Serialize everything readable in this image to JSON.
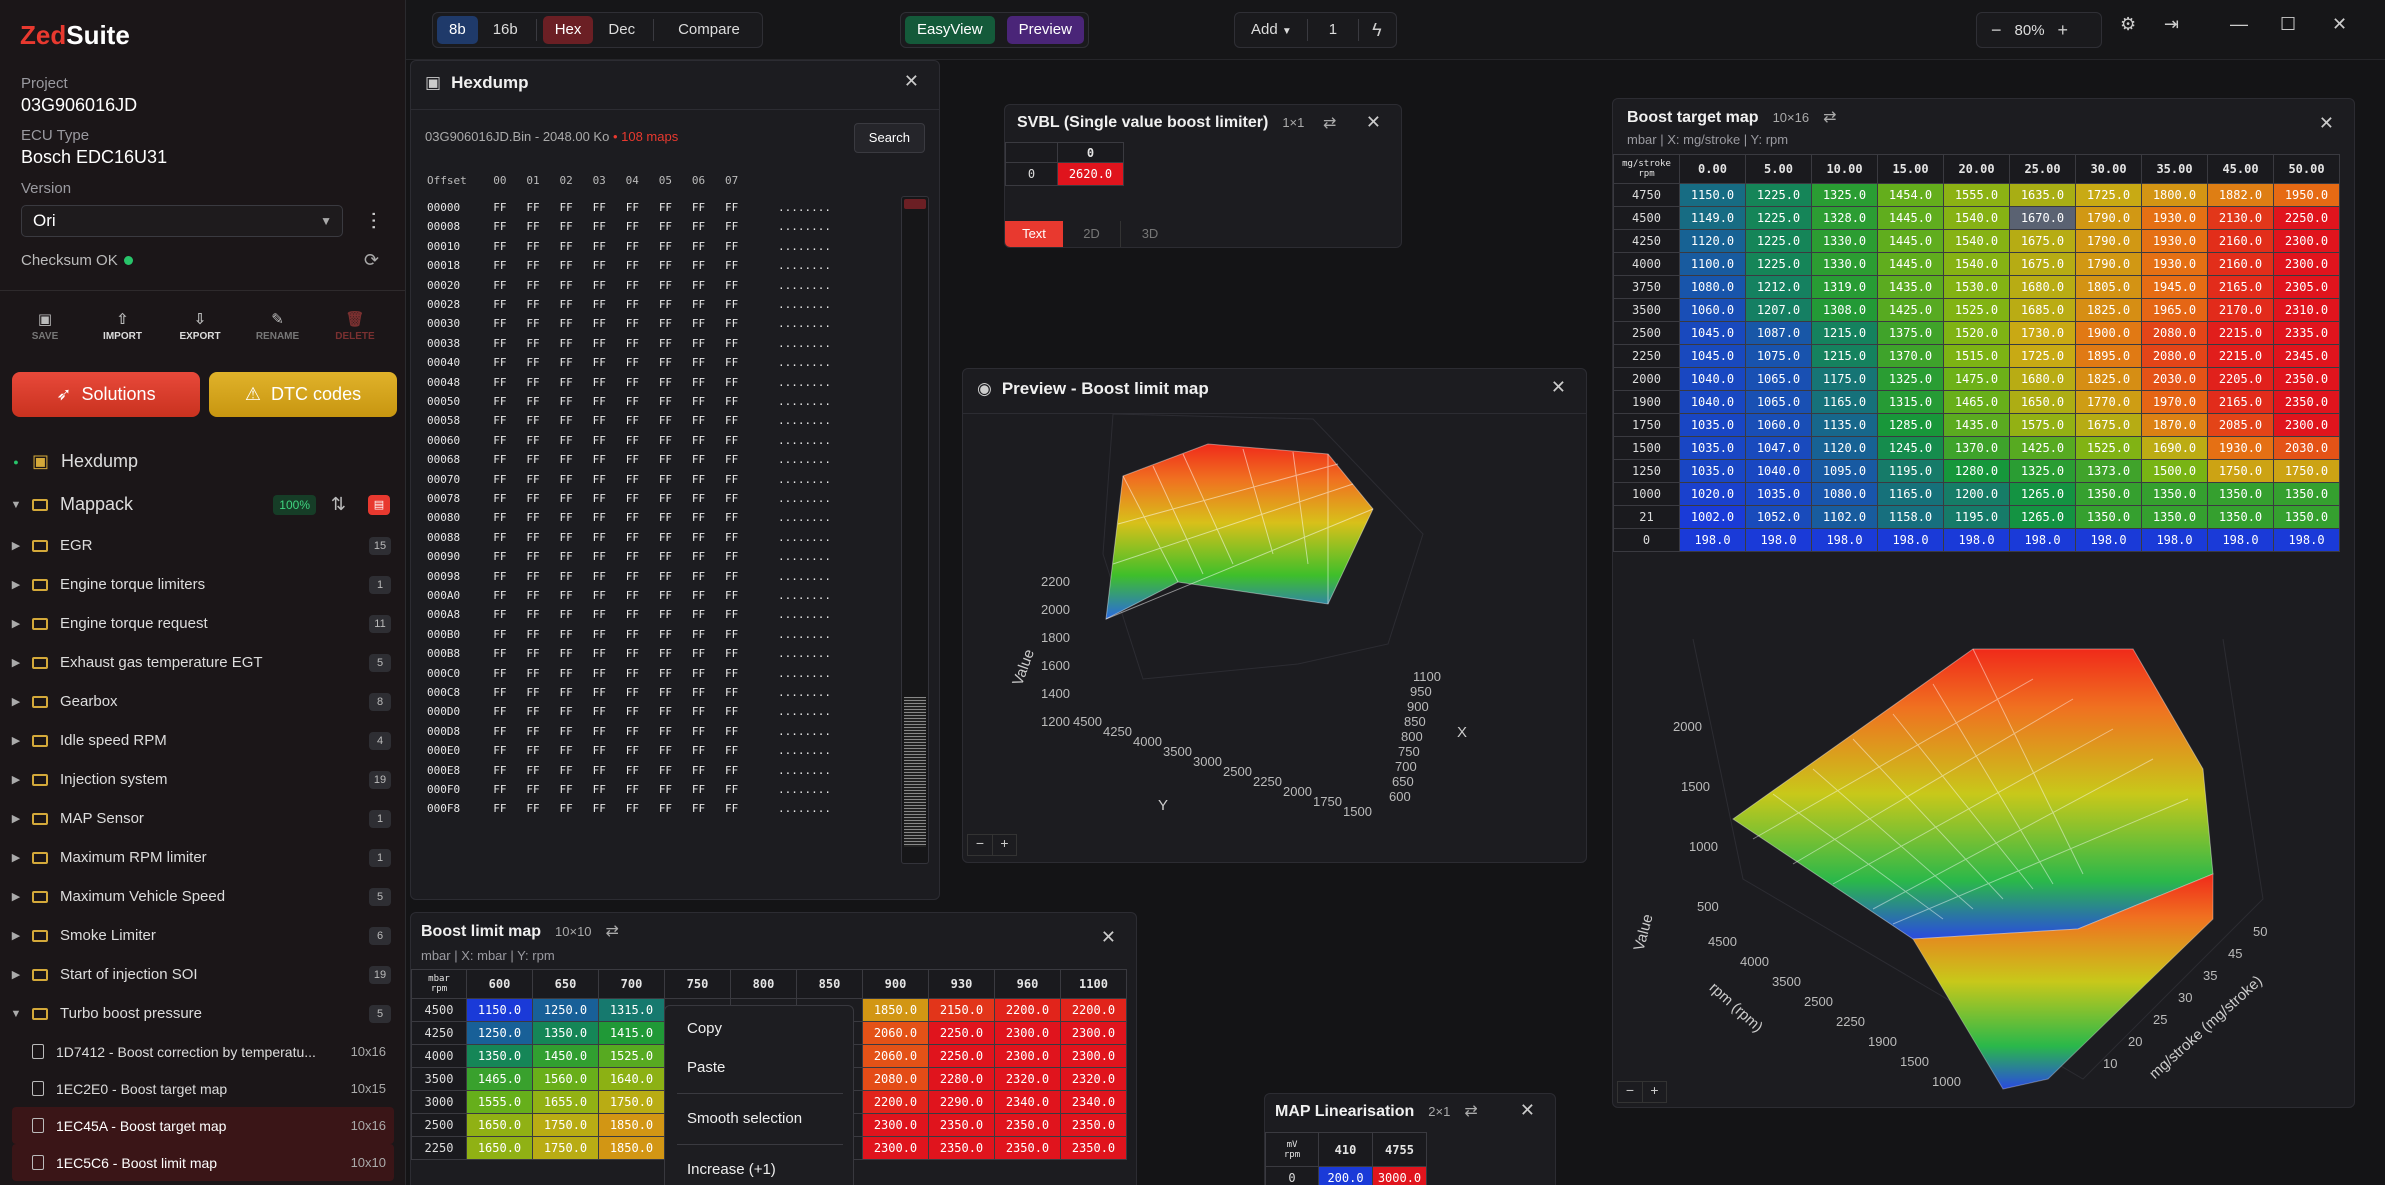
{
  "app": {
    "logo_a": "Zed",
    "logo_b": "Suite"
  },
  "sidebar": {
    "project_label": "Project",
    "project_value": "03G906016JD",
    "ecu_label": "ECU Type",
    "ecu_value": "Bosch EDC16U31",
    "version_label": "Version",
    "version_value": "Ori",
    "checksum": "Checksum OK",
    "actions": {
      "save": "SAVE",
      "import": "IMPORT",
      "export": "EXPORT",
      "rename": "RENAME",
      "delete": "DELETE"
    },
    "solutions": "Solutions",
    "dtc": "DTC codes",
    "hexdump": "Hexdump",
    "mappack": "Mappack",
    "mappack_pct": "100%",
    "folders": [
      {
        "name": "EGR",
        "count": "15"
      },
      {
        "name": "Engine torque limiters",
        "count": "1"
      },
      {
        "name": "Engine torque request",
        "count": "11"
      },
      {
        "name": "Exhaust gas temperature EGT",
        "count": "5"
      },
      {
        "name": "Gearbox",
        "count": "8"
      },
      {
        "name": "Idle speed RPM",
        "count": "4"
      },
      {
        "name": "Injection system",
        "count": "19"
      },
      {
        "name": "MAP Sensor",
        "count": "1"
      },
      {
        "name": "Maximum RPM limiter",
        "count": "1"
      },
      {
        "name": "Maximum Vehicle Speed",
        "count": "5"
      },
      {
        "name": "Smoke Limiter",
        "count": "6"
      },
      {
        "name": "Start of injection SOI",
        "count": "19"
      },
      {
        "name": "Turbo boost pressure",
        "count": "5"
      }
    ],
    "maps": [
      {
        "name": "1D7412 - Boost correction by temperatu...",
        "dim": "10x16"
      },
      {
        "name": "1EC2E0 - Boost target map",
        "dim": "10x15"
      },
      {
        "name": "1EC45A - Boost target map",
        "dim": "10x16"
      },
      {
        "name": "1EC5C6 - Boost limit map",
        "dim": "10x10"
      }
    ]
  },
  "topbar": {
    "b8": "8b",
    "b16": "16b",
    "hex": "Hex",
    "dec": "Dec",
    "compare": "Compare",
    "easyview": "EasyView",
    "preview": "Preview",
    "add": "Add",
    "qty": "1",
    "zoom": "80%"
  },
  "hexdump": {
    "title": "Hexdump",
    "file": "03G906016JD.Bin",
    "size": "- 2048.00 Ko",
    "maps": "• 108 maps",
    "search": "Search",
    "header": "Offset    00   01   02   03   04   05   06   07",
    "offsets": [
      "00000",
      "00008",
      "00010",
      "00018",
      "00020",
      "00028",
      "00030",
      "00038",
      "00040",
      "00048",
      "00050",
      "00058",
      "00060",
      "00068",
      "00070",
      "00078",
      "00080",
      "00088",
      "00090",
      "00098",
      "000A0",
      "000A8",
      "000B0",
      "000B8",
      "000C0",
      "000C8",
      "000D0",
      "000D8",
      "000E0",
      "000E8",
      "000F0",
      "000F8"
    ],
    "bytes": "FF   FF   FF   FF   FF   FF   FF   FF      ........"
  },
  "svbl": {
    "title": "SVBL (Single value boost limiter)",
    "dim": "1×1",
    "col": "0",
    "row": "0",
    "value": "2620.0",
    "tab_text": "Text",
    "tab_2d": "2D",
    "tab_3d": "3D"
  },
  "preview": {
    "title": "Preview - Boost limit map",
    "zl": [
      "2200",
      "2000",
      "1800",
      "1600",
      "1400",
      "1200"
    ],
    "zlabel": "Value",
    "xlabel": "X",
    "ylabel": "Y",
    "xt": [
      "1100",
      "950",
      "900",
      "850",
      "800",
      "750",
      "700",
      "650",
      "600"
    ],
    "yt": [
      "4500",
      "4250",
      "4000",
      "3500",
      "3000",
      "2500",
      "2250",
      "2000",
      "1750",
      "1500"
    ],
    "minus": "−",
    "plus": "+"
  },
  "boost_target": {
    "title": "Boost target map",
    "dim": "10×16",
    "sub": "mbar | X: mg/stroke | Y: rpm",
    "corner_a": "mg/stroke",
    "corner_b": "rpm",
    "cols": [
      "0.00",
      "5.00",
      "10.00",
      "15.00",
      "20.00",
      "25.00",
      "30.00",
      "35.00",
      "45.00",
      "50.00"
    ],
    "rows": [
      {
        "y": "4750",
        "v": [
          "1150.0",
          "1225.0",
          "1325.0",
          "1454.0",
          "1555.0",
          "1635.0",
          "1725.0",
          "1800.0",
          "1882.0",
          "1950.0"
        ]
      },
      {
        "y": "4500",
        "v": [
          "1149.0",
          "1225.0",
          "1328.0",
          "1445.0",
          "1540.0",
          "1670.0",
          "1790.0",
          "1930.0",
          "2130.0",
          "2250.0"
        ]
      },
      {
        "y": "4250",
        "v": [
          "1120.0",
          "1225.0",
          "1330.0",
          "1445.0",
          "1540.0",
          "1675.0",
          "1790.0",
          "1930.0",
          "2160.0",
          "2300.0"
        ]
      },
      {
        "y": "4000",
        "v": [
          "1100.0",
          "1225.0",
          "1330.0",
          "1445.0",
          "1540.0",
          "1675.0",
          "1790.0",
          "1930.0",
          "2160.0",
          "2300.0"
        ]
      },
      {
        "y": "3750",
        "v": [
          "1080.0",
          "1212.0",
          "1319.0",
          "1435.0",
          "1530.0",
          "1680.0",
          "1805.0",
          "1945.0",
          "2165.0",
          "2305.0"
        ]
      },
      {
        "y": "3500",
        "v": [
          "1060.0",
          "1207.0",
          "1308.0",
          "1425.0",
          "1525.0",
          "1685.0",
          "1825.0",
          "1965.0",
          "2170.0",
          "2310.0"
        ]
      },
      {
        "y": "2500",
        "v": [
          "1045.0",
          "1087.0",
          "1215.0",
          "1375.0",
          "1520.0",
          "1730.0",
          "1900.0",
          "2080.0",
          "2215.0",
          "2335.0"
        ]
      },
      {
        "y": "2250",
        "v": [
          "1045.0",
          "1075.0",
          "1215.0",
          "1370.0",
          "1515.0",
          "1725.0",
          "1895.0",
          "2080.0",
          "2215.0",
          "2345.0"
        ]
      },
      {
        "y": "2000",
        "v": [
          "1040.0",
          "1065.0",
          "1175.0",
          "1325.0",
          "1475.0",
          "1680.0",
          "1825.0",
          "2030.0",
          "2205.0",
          "2350.0"
        ]
      },
      {
        "y": "1900",
        "v": [
          "1040.0",
          "1065.0",
          "1165.0",
          "1315.0",
          "1465.0",
          "1650.0",
          "1770.0",
          "1970.0",
          "2165.0",
          "2350.0"
        ]
      },
      {
        "y": "1750",
        "v": [
          "1035.0",
          "1060.0",
          "1135.0",
          "1285.0",
          "1435.0",
          "1575.0",
          "1675.0",
          "1870.0",
          "2085.0",
          "2300.0"
        ]
      },
      {
        "y": "1500",
        "v": [
          "1035.0",
          "1047.0",
          "1120.0",
          "1245.0",
          "1370.0",
          "1425.0",
          "1525.0",
          "1690.0",
          "1930.0",
          "2030.0"
        ]
      },
      {
        "y": "1250",
        "v": [
          "1035.0",
          "1040.0",
          "1095.0",
          "1195.0",
          "1280.0",
          "1325.0",
          "1373.0",
          "1500.0",
          "1750.0",
          "1750.0"
        ]
      },
      {
        "y": "1000",
        "v": [
          "1020.0",
          "1035.0",
          "1080.0",
          "1165.0",
          "1200.0",
          "1265.0",
          "1350.0",
          "1350.0",
          "1350.0",
          "1350.0"
        ]
      },
      {
        "y": "21",
        "v": [
          "1002.0",
          "1052.0",
          "1102.0",
          "1158.0",
          "1195.0",
          "1265.0",
          "1350.0",
          "1350.0",
          "1350.0",
          "1350.0"
        ]
      },
      {
        "y": "0",
        "v": [
          "198.0",
          "198.0",
          "198.0",
          "198.0",
          "198.0",
          "198.0",
          "198.0",
          "198.0",
          "198.0",
          "198.0"
        ]
      }
    ],
    "zl": [
      "2000",
      "1500",
      "1000",
      "500"
    ],
    "zlabel": "Value",
    "ylabel": "rpm (rpm)",
    "xlabel": "mg/stroke (mg/stroke)",
    "yt": [
      "4500",
      "4000",
      "3500",
      "2500",
      "2250",
      "1900",
      "1500",
      "1000"
    ],
    "xt": [
      "50",
      "45",
      "35",
      "30",
      "25",
      "20",
      "10"
    ]
  },
  "boost_limit": {
    "title": "Boost limit map",
    "dim": "10×10",
    "sub": "mbar | X: mbar | Y: rpm",
    "corner_a": "mbar",
    "corner_b": "rpm",
    "cols": [
      "600",
      "650",
      "700",
      "750",
      "800",
      "850",
      "900",
      "930",
      "960",
      "1100"
    ],
    "rows": [
      {
        "y": "4500",
        "v": [
          "1150.0",
          "1250.0",
          "1315.0",
          "",
          "",
          "",
          "1850.0",
          "2150.0",
          "2200.0",
          "2200.0"
        ]
      },
      {
        "y": "4250",
        "v": [
          "1250.0",
          "1350.0",
          "1415.0",
          "",
          "",
          "",
          "2060.0",
          "2250.0",
          "2300.0",
          "2300.0"
        ]
      },
      {
        "y": "4000",
        "v": [
          "1350.0",
          "1450.0",
          "1525.0",
          "",
          "",
          "",
          "2060.0",
          "2250.0",
          "2300.0",
          "2300.0"
        ]
      },
      {
        "y": "3500",
        "v": [
          "1465.0",
          "1560.0",
          "1640.0",
          "",
          "",
          "",
          "2080.0",
          "2280.0",
          "2320.0",
          "2320.0"
        ]
      },
      {
        "y": "3000",
        "v": [
          "1555.0",
          "1655.0",
          "1750.0",
          "",
          "",
          "",
          "2200.0",
          "2290.0",
          "2340.0",
          "2340.0"
        ]
      },
      {
        "y": "2500",
        "v": [
          "1650.0",
          "1750.0",
          "1850.0",
          "",
          "",
          "",
          "2300.0",
          "2350.0",
          "2350.0",
          "2350.0"
        ]
      },
      {
        "y": "2250",
        "v": [
          "1650.0",
          "1750.0",
          "1850.0",
          "",
          "",
          "",
          "2300.0",
          "2350.0",
          "2350.0",
          "2350.0"
        ]
      }
    ]
  },
  "context_menu": {
    "copy": "Copy",
    "paste": "Paste",
    "smooth": "Smooth selection",
    "increase": "Increase (+1)"
  },
  "map_lin": {
    "title": "MAP Linearisation",
    "dim": "2×1",
    "corner_a": "mV",
    "corner_b": "rpm",
    "cols": [
      "410",
      "4755"
    ],
    "row": "0",
    "v": [
      "200.0",
      "3000.0"
    ]
  }
}
